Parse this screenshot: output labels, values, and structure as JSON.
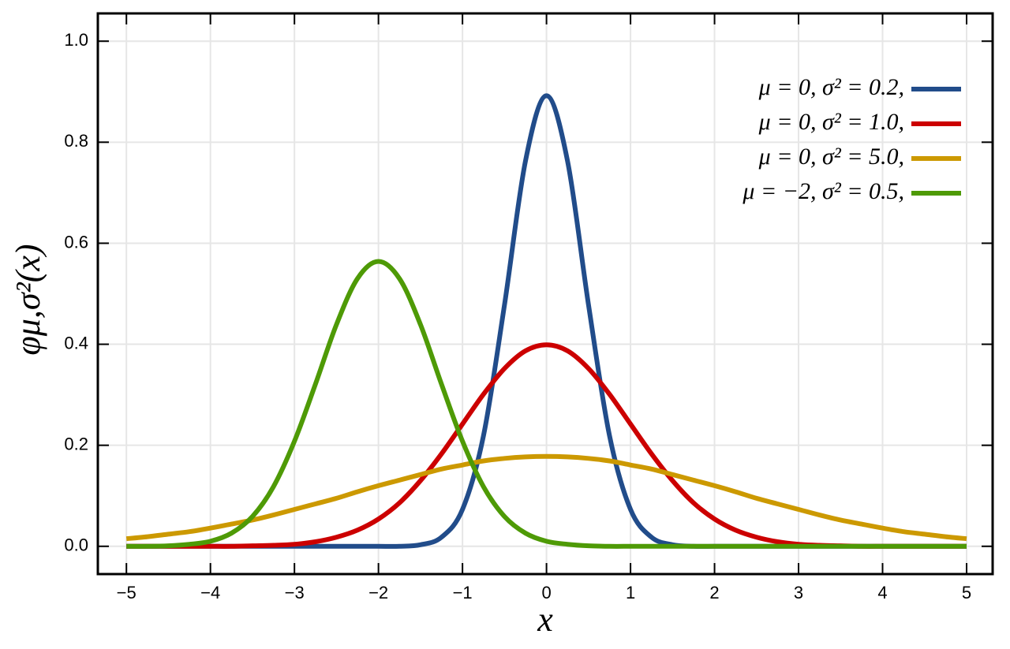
{
  "chart_data": {
    "type": "line",
    "xlabel": "x",
    "ylabel": "φμ,σ²(x)",
    "x": [
      -5,
      -4.75,
      -4.5,
      -4.25,
      -4,
      -3.75,
      -3.5,
      -3.25,
      -3,
      -2.75,
      -2.5,
      -2.25,
      -2,
      -1.75,
      -1.5,
      -1.25,
      -1,
      -0.75,
      -0.5,
      -0.25,
      0,
      0.25,
      0.5,
      0.75,
      1,
      1.25,
      1.5,
      1.75,
      2,
      2.25,
      2.5,
      2.75,
      3,
      3.25,
      3.5,
      3.75,
      4,
      4.25,
      4.5,
      4.75,
      5
    ],
    "series": [
      {
        "name": "μ = 0,    σ² = 0.2,",
        "color": "#214c8a",
        "values": [
          0,
          0,
          0,
          0,
          0,
          0,
          0,
          0,
          0,
          0,
          0,
          0,
          0,
          0,
          0.003,
          0.018,
          0.073,
          0.219,
          0.478,
          0.763,
          0.892,
          0.763,
          0.478,
          0.219,
          0.073,
          0.018,
          0.003,
          0,
          0,
          0,
          0,
          0,
          0,
          0,
          0,
          0,
          0,
          0,
          0,
          0,
          0
        ]
      },
      {
        "name": "μ = 0,    σ² = 1.0,",
        "color": "#cc0000",
        "values": [
          0,
          0,
          0,
          0,
          0,
          0,
          0.001,
          0.002,
          0.004,
          0.009,
          0.018,
          0.032,
          0.054,
          0.086,
          0.13,
          0.183,
          0.242,
          0.301,
          0.352,
          0.387,
          0.399,
          0.387,
          0.352,
          0.301,
          0.242,
          0.183,
          0.13,
          0.086,
          0.054,
          0.032,
          0.018,
          0.009,
          0.004,
          0.002,
          0.001,
          0,
          0,
          0,
          0,
          0,
          0
        ]
      },
      {
        "name": "μ = 0,    σ² = 5.0,",
        "color": "#cc9900",
        "values": [
          0.015,
          0.019,
          0.024,
          0.029,
          0.036,
          0.044,
          0.052,
          0.062,
          0.073,
          0.084,
          0.095,
          0.108,
          0.12,
          0.131,
          0.142,
          0.153,
          0.161,
          0.169,
          0.174,
          0.177,
          0.178,
          0.177,
          0.174,
          0.169,
          0.161,
          0.153,
          0.142,
          0.131,
          0.12,
          0.108,
          0.095,
          0.084,
          0.073,
          0.062,
          0.052,
          0.044,
          0.036,
          0.029,
          0.024,
          0.019,
          0.015
        ]
      },
      {
        "name": "μ = −2, σ² = 0.5,",
        "color": "#4e9a06",
        "values": [
          0,
          0,
          0.001,
          0.004,
          0.01,
          0.026,
          0.059,
          0.118,
          0.208,
          0.321,
          0.439,
          0.53,
          0.564,
          0.53,
          0.439,
          0.321,
          0.208,
          0.118,
          0.059,
          0.026,
          0.01,
          0.004,
          0.001,
          0,
          0,
          0,
          0,
          0,
          0,
          0,
          0,
          0,
          0,
          0,
          0,
          0,
          0,
          0,
          0,
          0,
          0
        ]
      }
    ],
    "xlim": [
      -5.34,
      5.31
    ],
    "ylim": [
      -0.055,
      1.055
    ],
    "xticks": [
      {
        "value": -5,
        "label": "−5"
      },
      {
        "value": -4,
        "label": "−4"
      },
      {
        "value": -3,
        "label": "−3"
      },
      {
        "value": -2,
        "label": "−2"
      },
      {
        "value": -1,
        "label": "−1"
      },
      0,
      1,
      2,
      3,
      4,
      5
    ],
    "yticks": [
      {
        "value": 0,
        "label": "0.0"
      },
      0.2,
      0.4,
      0.6,
      0.8,
      {
        "value": 1,
        "label": "1.0"
      }
    ],
    "grid": true,
    "legend": "upper right"
  }
}
